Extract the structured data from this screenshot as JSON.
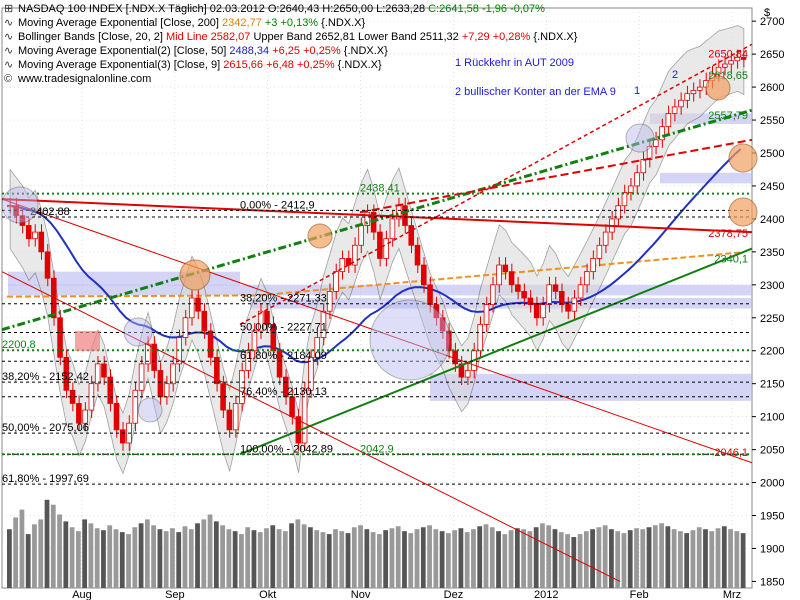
{
  "header": {
    "line1": {
      "title": "NASDAQ 100 INDEX [.NDX.X  Täglich] 02.03.2012",
      "ohl": "O:2640,43 H:2650,00 L:2633,28",
      "close": "C:2641,58 -1,96 -0,07%"
    },
    "line2": {
      "label": "Moving Average Exponential [Close, 200]",
      "value": "2342,77",
      "chg": "+3 +0,13%",
      "sym": "{.NDX.X}",
      "color": "#e08000"
    },
    "line3": {
      "label": "Bollinger Bands [Close, 20, 2]",
      "mid": "Mid Line 2582,07",
      "upper": "Upper Band 2652,81 Lower Band 2511,32",
      "chg": "+7,29 +0,28%",
      "sym": "{.NDX.X}",
      "color": "#e00000"
    },
    "line4": {
      "label": "Moving Average Exponential(2) [Close, 50]",
      "value": "2488,34",
      "chg": "+6,25 +0,25%",
      "sym": "{.NDX.X}",
      "color": "#2020c0"
    },
    "line5": {
      "label": "Moving Average Exponential(3) [Close, 9]",
      "value": "2615,66",
      "chg": "+6,48 +0,25%",
      "sym": "{.NDX.X}",
      "color": "#e00000"
    },
    "line6": {
      "label": "www.tradesignalonline.com"
    }
  },
  "annotations": {
    "a1": "1 Rückkehr in AUT 2009",
    "a2": "2 bullischer Konter an der EMA 9",
    "n1": "1",
    "n2": "2"
  },
  "colors": {
    "candle": "#e00000",
    "ema200": "#f09020",
    "ema50": "#2030c0",
    "bollinger_fill": "#d8d8d8",
    "trend_green": "#108010",
    "trend_red": "#e00000",
    "support_band": "#b8b8f0",
    "grid": "#c8c8c8"
  },
  "chart_data": {
    "type": "candlestick",
    "title": "NASDAQ 100 INDEX [.NDX.X  Täglich] 02.03.2012",
    "y_axis_label": "$",
    "ylim": [
      1840,
      2720
    ],
    "yticks": [
      1850,
      1900,
      1950,
      2000,
      2050,
      2100,
      2150,
      2200,
      2250,
      2300,
      2350,
      2400,
      2450,
      2500,
      2550,
      2600,
      2650,
      2700
    ],
    "xticks": [
      "Aug",
      "Sep",
      "Okt",
      "Nov",
      "Dez",
      "2012",
      "Feb",
      "Mrz"
    ],
    "close_series": [
      2420,
      2405,
      2390,
      2370,
      2380,
      2350,
      2310,
      2250,
      2190,
      2140,
      2120,
      2090,
      2110,
      2150,
      2180,
      2160,
      2120,
      2080,
      2060,
      2090,
      2140,
      2180,
      2210,
      2170,
      2130,
      2150,
      2180,
      2220,
      2250,
      2280,
      2260,
      2230,
      2190,
      2150,
      2110,
      2080,
      2120,
      2170,
      2200,
      2230,
      2260,
      2240,
      2200,
      2160,
      2130,
      2100,
      2060,
      2140,
      2190,
      2220,
      2260,
      2290,
      2320,
      2340,
      2330,
      2360,
      2390,
      2410,
      2380,
      2340,
      2370,
      2400,
      2420,
      2390,
      2360,
      2330,
      2300,
      2270,
      2250,
      2230,
      2200,
      2180,
      2160,
      2170,
      2200,
      2240,
      2270,
      2300,
      2330,
      2320,
      2300,
      2290,
      2280,
      2270,
      2250,
      2270,
      2300,
      2290,
      2270,
      2260,
      2280,
      2300,
      2320,
      2340,
      2360,
      2380,
      2400,
      2420,
      2440,
      2450,
      2470,
      2490,
      2510,
      2520,
      2540,
      2560,
      2570,
      2580,
      2590,
      2595,
      2600,
      2610,
      2620,
      2630,
      2635,
      2640,
      2645,
      2642
    ],
    "levels": [
      {
        "label": "2402,88",
        "value": 2402.88,
        "style": "dashed-black"
      },
      {
        "label": "0,00% - 2412,9",
        "value": 2412.9,
        "style": "dashed-black"
      },
      {
        "label": "2438,41",
        "value": 2438.41,
        "style": "dotted-green"
      },
      {
        "label": "38,20% - 2271,33",
        "value": 2271.33,
        "style": "fib"
      },
      {
        "label": "50,00% - 2227,71",
        "value": 2227.71,
        "style": "fib"
      },
      {
        "label": "61,80% - 2184,09",
        "value": 2184.09,
        "style": "fib"
      },
      {
        "label": "76,40% - 2130,13",
        "value": 2130.13,
        "style": "fib"
      },
      {
        "label": "100,00% - 2042,89",
        "value": 2042.89,
        "style": "fib"
      },
      {
        "label": "38,20% - 2152,42",
        "value": 2152.42,
        "style": "fib"
      },
      {
        "label": "50,00% - 2075,06",
        "value": 2075.06,
        "style": "fib"
      },
      {
        "label": "61,80% - 1997,69",
        "value": 1997.69,
        "style": "fib"
      },
      {
        "label": "2200,8",
        "value": 2200.8,
        "style": "dotted-green"
      },
      {
        "label": "2042,9",
        "value": 2042.9,
        "style": "dotted-green"
      }
    ],
    "right_labels": [
      {
        "label": "2650,84",
        "value": 2650.84,
        "color": "#e00000"
      },
      {
        "label": "2618,65",
        "value": 2618.65,
        "color": "#108010"
      },
      {
        "label": "2557,79",
        "value": 2557.79,
        "color": "#108010"
      },
      {
        "label": "2378,75",
        "value": 2378.75,
        "color": "#e00000"
      },
      {
        "label": "2340,1",
        "value": 2340.1,
        "color": "#108010"
      },
      {
        "label": "2046,1",
        "value": 2046.1,
        "color": "#e00000"
      }
    ],
    "volume": [
      60,
      72,
      80,
      55,
      65,
      70,
      90,
      85,
      75,
      68,
      62,
      58,
      70,
      66,
      61,
      59,
      64,
      60,
      57,
      55,
      62,
      66,
      70,
      64,
      60,
      58,
      61,
      57,
      63,
      60,
      66,
      70,
      75,
      68,
      64,
      60,
      58,
      55,
      62,
      59,
      57,
      61,
      64,
      60,
      58,
      66,
      70,
      65,
      62,
      59,
      57,
      55,
      60,
      58,
      56,
      62,
      64,
      60,
      57,
      55,
      59,
      61,
      63,
      58,
      56,
      60,
      62,
      64,
      60,
      58,
      56,
      59,
      61,
      57,
      60,
      63,
      65,
      62,
      58,
      55,
      59,
      61,
      60,
      58,
      62,
      66,
      64,
      60,
      57,
      55,
      52,
      55,
      58,
      60,
      62,
      64,
      60,
      58,
      56,
      59,
      61,
      60,
      62,
      64,
      66,
      63,
      60,
      58,
      56,
      59,
      62,
      60,
      58,
      61,
      63,
      60,
      58,
      56
    ]
  }
}
